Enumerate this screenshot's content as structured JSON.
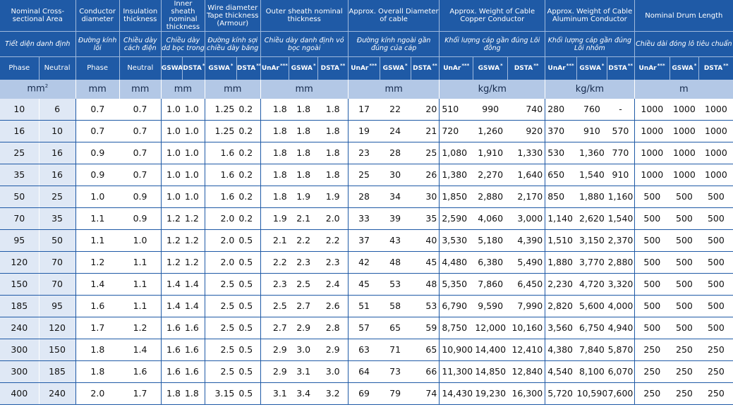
{
  "groups": [
    {
      "en": "Nominal Cross-sectional Area",
      "vn": "Tiết diện danh định"
    },
    {
      "en": "Conductor diameter",
      "vn": "Đường kính lõi"
    },
    {
      "en": "Insulation thickness",
      "vn": "Chiều dày cách điện"
    },
    {
      "en": "Inner sheath nominal thickness",
      "vn": "Chiều dày dd bọc trong"
    },
    {
      "en": "Wire diameter Tape thickness (Armour)",
      "vn": "Đường kính sợi chiều dày băng"
    },
    {
      "en": "Outer sheath nominal thickness",
      "vn": "Chiều dày danh định vỏ bọc ngoài"
    },
    {
      "en": "Approx. Overall Diameter of cable",
      "vn": "Đường kính ngoài gần đúng của cáp"
    },
    {
      "en": "Approx. Weight of Cable Copper Conductor",
      "vn": "Khối lượng cáp gần đúng Lõi đồng"
    },
    {
      "en": "Approx. Weight of Cable Aluminum Conductor",
      "vn": "Khối lượng cáp gần đúng Lõi nhôm"
    },
    {
      "en": "Nominal Drum Length",
      "vn": "Chiều dài đóng lô tiêu chuẩn"
    }
  ],
  "subheaders": {
    "phase": "Phase",
    "neutral": "Neutral",
    "unar": "UnAr",
    "gswa": "GSWA",
    "dsta": "DSTA",
    "s3": "***",
    "s1": "*",
    "s2": "**"
  },
  "units": {
    "area": "mm",
    "area_sup": "2",
    "mm": "mm",
    "kgkm": "kg/km",
    "m": "m"
  },
  "rows": [
    [
      "10",
      "6",
      "0.7",
      "0.7",
      "1.0",
      "1.0",
      "1.25",
      "0.2",
      "1.8",
      "1.8",
      "1.8",
      "17",
      "22",
      "20",
      "510",
      "990",
      "740",
      "280",
      "760",
      "-",
      "1000",
      "1000",
      "1000"
    ],
    [
      "16",
      "10",
      "0.7",
      "0.7",
      "1.0",
      "1.0",
      "1.25",
      "0.2",
      "1.8",
      "1.8",
      "1.8",
      "19",
      "24",
      "21",
      "720",
      "1,260",
      "920",
      "370",
      "910",
      "570",
      "1000",
      "1000",
      "1000"
    ],
    [
      "25",
      "16",
      "0.9",
      "0.7",
      "1.0",
      "1.0",
      "1.6",
      "0.2",
      "1.8",
      "1.8",
      "1.8",
      "23",
      "28",
      "25",
      "1,080",
      "1,910",
      "1,330",
      "530",
      "1,360",
      "770",
      "1000",
      "1000",
      "1000"
    ],
    [
      "35",
      "16",
      "0.9",
      "0.7",
      "1.0",
      "1.0",
      "1.6",
      "0.2",
      "1.8",
      "1.8",
      "1.8",
      "25",
      "30",
      "26",
      "1,380",
      "2,270",
      "1,640",
      "650",
      "1,540",
      "910",
      "1000",
      "1000",
      "1000"
    ],
    [
      "50",
      "25",
      "1.0",
      "0.9",
      "1.0",
      "1.0",
      "1.6",
      "0.2",
      "1.8",
      "1.9",
      "1.9",
      "28",
      "34",
      "30",
      "1,850",
      "2,880",
      "2,170",
      "850",
      "1,880",
      "1,160",
      "500",
      "500",
      "500"
    ],
    [
      "70",
      "35",
      "1.1",
      "0.9",
      "1.2",
      "1.2",
      "2.0",
      "0.2",
      "1.9",
      "2.1",
      "2.0",
      "33",
      "39",
      "35",
      "2,590",
      "4,060",
      "3,000",
      "1,140",
      "2,620",
      "1,540",
      "500",
      "500",
      "500"
    ],
    [
      "95",
      "50",
      "1.1",
      "1.0",
      "1.2",
      "1.2",
      "2.0",
      "0.5",
      "2.1",
      "2.2",
      "2.2",
      "37",
      "43",
      "40",
      "3,530",
      "5,180",
      "4,390",
      "1,510",
      "3,150",
      "2,370",
      "500",
      "500",
      "500"
    ],
    [
      "120",
      "70",
      "1.2",
      "1.1",
      "1.2",
      "1.2",
      "2.0",
      "0.5",
      "2.2",
      "2.3",
      "2.3",
      "42",
      "48",
      "45",
      "4,480",
      "6,380",
      "5,490",
      "1,880",
      "3,770",
      "2,880",
      "500",
      "500",
      "500"
    ],
    [
      "150",
      "70",
      "1.4",
      "1.1",
      "1.4",
      "1.4",
      "2.5",
      "0.5",
      "2.3",
      "2.5",
      "2.4",
      "45",
      "53",
      "48",
      "5,350",
      "7,860",
      "6,450",
      "2,230",
      "4,720",
      "3,320",
      "500",
      "500",
      "500"
    ],
    [
      "185",
      "95",
      "1.6",
      "1.1",
      "1.4",
      "1.4",
      "2.5",
      "0.5",
      "2.5",
      "2.7",
      "2.6",
      "51",
      "58",
      "53",
      "6,790",
      "9,590",
      "7,990",
      "2,820",
      "5,600",
      "4,000",
      "500",
      "500",
      "500"
    ],
    [
      "240",
      "120",
      "1.7",
      "1.2",
      "1.6",
      "1.6",
      "2.5",
      "0.5",
      "2.7",
      "2.9",
      "2.8",
      "57",
      "65",
      "59",
      "8,750",
      "12,000",
      "10,160",
      "3,560",
      "6,750",
      "4,940",
      "500",
      "500",
      "500"
    ],
    [
      "300",
      "150",
      "1.8",
      "1.4",
      "1.6",
      "1.6",
      "2.5",
      "0.5",
      "2.9",
      "3.0",
      "2.9",
      "63",
      "71",
      "65",
      "10,900",
      "14,400",
      "12,410",
      "4,380",
      "7,840",
      "5,870",
      "250",
      "250",
      "250"
    ],
    [
      "300",
      "185",
      "1.8",
      "1.6",
      "1.6",
      "1.6",
      "2.5",
      "0.5",
      "2.9",
      "3.1",
      "3.0",
      "64",
      "73",
      "66",
      "11,300",
      "14,850",
      "12,840",
      "4,540",
      "8,100",
      "6,070",
      "250",
      "250",
      "250"
    ],
    [
      "400",
      "240",
      "2.0",
      "1.7",
      "1.8",
      "1.8",
      "3.15",
      "0.5",
      "3.1",
      "3.4",
      "3.2",
      "69",
      "79",
      "74",
      "14,430",
      "19,230",
      "16,300",
      "5,720",
      "10,590",
      "7,600",
      "250",
      "250",
      "250"
    ]
  ]
}
